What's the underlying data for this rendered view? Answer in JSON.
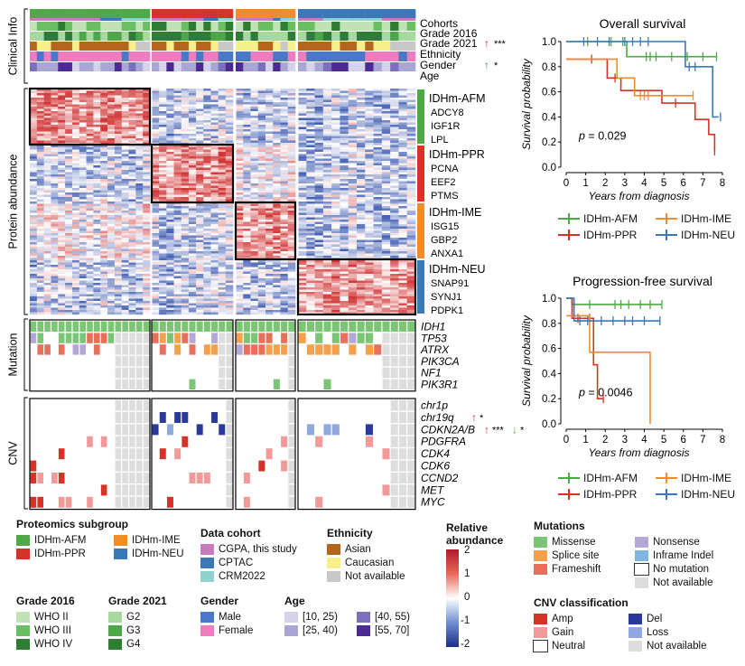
{
  "colors": {
    "afm": "#4DAA46",
    "ppr": "#D73227",
    "ime": "#F28C28",
    "neu": "#3A78B8",
    "cgpa": "#C77CBF",
    "cptac": "#3A78B8",
    "crm": "#8FD3CF",
    "who2": "#BFE3B4",
    "who3": "#6BBF62",
    "who4": "#2E7D32",
    "g2": "#A6D99B",
    "g3": "#4FA64A",
    "g4": "#2E7D32",
    "asian": "#B5651D",
    "caucasian": "#F7F08A",
    "na": "#C8C8C8",
    "male": "#4A78C8",
    "female": "#F07CC0",
    "age1": "#D5D3EC",
    "age2": "#A9A6D6",
    "age3": "#7B70BE",
    "age4": "#4B2A93",
    "missense": "#7CC576",
    "splice": "#F5A04A",
    "frameshift": "#E8705A",
    "nonsense": "#B4A7D6",
    "inframe": "#7FB5E0",
    "amp": "#D73227",
    "gain": "#F29A9A",
    "del": "#2A3A9C",
    "loss": "#8FA8DE"
  },
  "clinical": {
    "title": "Clinical Info",
    "rows": [
      "Cohorts",
      "Grade 2016",
      "Grade 2021",
      "Ethnicity",
      "Gender",
      "Age"
    ],
    "notes": [
      {
        "row": "Grade 2021",
        "arrow": "↑",
        "color": "#D73227",
        "sig": "***"
      },
      {
        "row": "Gender",
        "arrow": "↑",
        "color": "#3A78B8",
        "sig": "*"
      }
    ]
  },
  "protein": {
    "title": "Protein abundance",
    "groups": [
      {
        "name": "IDHm-AFM",
        "genes": [
          "ADCY8",
          "IGF1R",
          "LPL"
        ]
      },
      {
        "name": "IDHm-PPR",
        "genes": [
          "PCNA",
          "EEF2",
          "PTMS"
        ]
      },
      {
        "name": "IDHm-IME",
        "genes": [
          "ISG15",
          "GBP2",
          "ANXA1"
        ]
      },
      {
        "name": "IDHm-NEU",
        "genes": [
          "SNAP91",
          "SYNJ1",
          "PDPK1"
        ]
      }
    ]
  },
  "mutation": {
    "title": "Mutation",
    "genes": [
      "IDH1",
      "TP53",
      "ATRX",
      "PIK3CA",
      "NF1",
      "PIK3R1"
    ]
  },
  "cnv": {
    "title": "CNV",
    "genes": [
      "chr1p",
      "chr19q",
      "CDKN2A/B",
      "PDGFRA",
      "CDK4",
      "CDK6",
      "CCND2",
      "MET",
      "MYC"
    ],
    "notes": [
      {
        "gene": "chr19q",
        "marks": [
          {
            "arrow": "↑",
            "color": "#D73227",
            "sig": "*"
          }
        ]
      },
      {
        "gene": "CDKN2A/B",
        "marks": [
          {
            "arrow": "↑",
            "color": "#D73227",
            "sig": "***"
          },
          {
            "arrow": "↓",
            "color": "#4DAA46",
            "sig": "*"
          }
        ]
      }
    ]
  },
  "km_os": {
    "title": "Overall survival",
    "xlabel": "Years from diagnosis",
    "ylabel": "Survival probability",
    "pvalue_label": "p",
    "pvalue": " = 0.029",
    "xticks": [
      "0",
      "1",
      "2",
      "3",
      "4",
      "5",
      "6",
      "7",
      "8"
    ],
    "yticks": [
      "0.0",
      "0.2",
      "0.4",
      "0.6",
      "0.8",
      "1.0"
    ],
    "legend": [
      "IDHm-AFM",
      "IDHm-PPR",
      "IDHm-IME",
      "IDHm-NEU"
    ]
  },
  "km_pfs": {
    "title": "Progression-free survival",
    "xlabel": "Years from diagnosis",
    "ylabel": "Survival probability",
    "pvalue_label": "p",
    "pvalue": " = 0.0046",
    "xticks": [
      "0",
      "1",
      "2",
      "3",
      "4",
      "5",
      "6",
      "7",
      "8"
    ],
    "yticks": [
      "0.0",
      "0.2",
      "0.4",
      "0.6",
      "0.8",
      "1.0"
    ],
    "legend": [
      "IDHm-AFM",
      "IDHm-PPR",
      "IDHm-IME",
      "IDHm-NEU"
    ]
  },
  "chart_data": [
    {
      "type": "line",
      "title": "Overall survival",
      "xlabel": "Years from diagnosis",
      "ylabel": "Survival probability",
      "xlim": [
        0,
        8
      ],
      "ylim": [
        0,
        1
      ],
      "annotation": "p = 0.029",
      "series": [
        {
          "name": "IDHm-AFM",
          "x": [
            0,
            3.1,
            7.7
          ],
          "y": [
            1.0,
            0.88,
            0.88
          ],
          "censored": [
            1.1,
            2.3,
            2.9,
            4.1,
            4.3,
            4.6,
            5.4,
            6.2,
            7.0,
            7.7
          ]
        },
        {
          "name": "IDHm-PPR",
          "x": [
            0,
            0.6,
            2.1,
            2.8,
            4.9,
            5.9,
            6.6,
            7.3,
            7.6
          ],
          "y": [
            0.86,
            0.86,
            0.71,
            0.61,
            0.51,
            0.51,
            0.38,
            0.26,
            0.13
          ],
          "censored": [
            1.3,
            2.5,
            5.6,
            7.6
          ]
        },
        {
          "name": "IDHm-IME",
          "x": [
            0,
            1.9,
            2.6,
            3.5,
            6.5
          ],
          "y": [
            0.86,
            0.86,
            0.71,
            0.57,
            0.57
          ],
          "censored": [
            3.8,
            4.0,
            4.2,
            6.5
          ]
        },
        {
          "name": "IDHm-NEU",
          "x": [
            0,
            1.3,
            6.1,
            7.5,
            7.8
          ],
          "y": [
            1.0,
            1.0,
            0.8,
            0.4,
            0.4
          ],
          "censored": [
            0.9,
            1.6,
            2.2,
            3.0,
            3.4,
            3.8,
            4.2,
            6.3,
            6.6,
            7.9
          ]
        }
      ]
    },
    {
      "type": "line",
      "title": "Progression-free survival",
      "xlabel": "Years from diagnosis",
      "ylabel": "Survival probability",
      "xlim": [
        0,
        8
      ],
      "ylim": [
        0,
        1
      ],
      "annotation": "p = 0.0046",
      "series": [
        {
          "name": "IDHm-AFM",
          "x": [
            0,
            0.3,
            4.9
          ],
          "y": [
            1.0,
            0.95,
            0.95
          ],
          "censored": [
            1.2,
            2.5,
            2.8,
            3.2,
            3.8,
            4.3,
            4.9
          ]
        },
        {
          "name": "IDHm-PPR",
          "x": [
            0,
            0.3,
            0.8,
            1.4,
            1.6,
            1.9
          ],
          "y": [
            1.0,
            0.84,
            0.84,
            0.47,
            0.2,
            0.2
          ],
          "censored": [
            0.6,
            1.2,
            1.9
          ]
        },
        {
          "name": "IDHm-IME",
          "x": [
            0,
            0.5,
            1.2,
            1.4,
            4.3
          ],
          "y": [
            0.86,
            0.86,
            0.57,
            0.57,
            0.0
          ],
          "censored": []
        },
        {
          "name": "IDHm-NEU",
          "x": [
            0,
            0.4,
            4.8
          ],
          "y": [
            1.0,
            0.82,
            0.82
          ],
          "censored": [
            0.7,
            1.1,
            1.8,
            2.4,
            3.0,
            3.4,
            4.0,
            4.8
          ]
        }
      ]
    },
    {
      "type": "heatmap",
      "title": "Relative abundance",
      "scale_ticks": [
        "2",
        "1",
        "0",
        "-1",
        "-2"
      ],
      "subgroups": [
        "IDHm-AFM",
        "IDHm-PPR",
        "IDHm-IME",
        "IDHm-NEU"
      ],
      "samples_per_group": [
        17,
        11,
        8,
        14
      ]
    }
  ],
  "legends": {
    "proteomics": {
      "title": "Proteomics subgroup",
      "items": [
        {
          "label": "IDHm-AFM",
          "color": "#4DAA46"
        },
        {
          "label": "IDHm-IME",
          "color": "#F28C28"
        },
        {
          "label": "IDHm-PPR",
          "color": "#D73227"
        },
        {
          "label": "IDHm-NEU",
          "color": "#3A78B8"
        }
      ]
    },
    "cohort": {
      "title": "Data cohort",
      "items": [
        {
          "label": "CGPA, this study",
          "color": "#C77CBF"
        },
        {
          "label": "CPTAC",
          "color": "#3A78B8"
        },
        {
          "label": "CRM2022",
          "color": "#8FD3CF"
        }
      ]
    },
    "ethnicity": {
      "title": "Ethnicity",
      "items": [
        {
          "label": "Asian",
          "color": "#B5651D"
        },
        {
          "label": "Caucasian",
          "color": "#F7F08A"
        },
        {
          "label": "Not available",
          "color": "#C8C8C8"
        }
      ]
    },
    "abundance": {
      "title": "Relative abundance",
      "ticks": [
        "2",
        "1",
        "0",
        "-1",
        "-2"
      ]
    },
    "mutations": {
      "title": "Mutations",
      "items": [
        {
          "label": "Missense",
          "color": "#7CC576"
        },
        {
          "label": "Nonsense",
          "color": "#B4A7D6"
        },
        {
          "label": "Splice site",
          "color": "#F5A04A"
        },
        {
          "label": "Inframe Indel",
          "color": "#7FB5E0"
        },
        {
          "label": "Frameshift",
          "color": "#E8705A"
        },
        {
          "label": "No mutation",
          "color": "#FFFFFF"
        },
        {
          "label": "",
          "color": ""
        },
        {
          "label": "Not available",
          "color": "#DDDDDD"
        }
      ]
    },
    "grade2016": {
      "title": "Grade 2016",
      "items": [
        {
          "label": "WHO II",
          "color": "#BFE3B4"
        },
        {
          "label": "WHO III",
          "color": "#6BBF62"
        },
        {
          "label": "WHO IV",
          "color": "#2E7D32"
        }
      ]
    },
    "grade2021": {
      "title": "Grade 2021",
      "items": [
        {
          "label": "G2",
          "color": "#A6D99B"
        },
        {
          "label": "G3",
          "color": "#4FA64A"
        },
        {
          "label": "G4",
          "color": "#2E7D32"
        }
      ]
    },
    "gender": {
      "title": "Gender",
      "items": [
        {
          "label": "Male",
          "color": "#4A78C8"
        },
        {
          "label": "Female",
          "color": "#F07CC0"
        }
      ]
    },
    "age": {
      "title": "Age",
      "items": [
        {
          "label": "[10, 25)",
          "color": "#D5D3EC"
        },
        {
          "label": "[40, 55)",
          "color": "#7B70BE"
        },
        {
          "label": "[25, 40)",
          "color": "#A9A6D6"
        },
        {
          "label": "[55, 70]",
          "color": "#4B2A93"
        }
      ]
    },
    "cnvclass": {
      "title": "CNV classification",
      "items": [
        {
          "label": "Amp",
          "color": "#D73227"
        },
        {
          "label": "Del",
          "color": "#2A3A9C"
        },
        {
          "label": "Gain",
          "color": "#F29A9A"
        },
        {
          "label": "Loss",
          "color": "#8FA8DE"
        },
        {
          "label": "Neutral",
          "color": "#FFFFFF"
        },
        {
          "label": "Not available",
          "color": "#DDDDDD"
        }
      ]
    }
  }
}
